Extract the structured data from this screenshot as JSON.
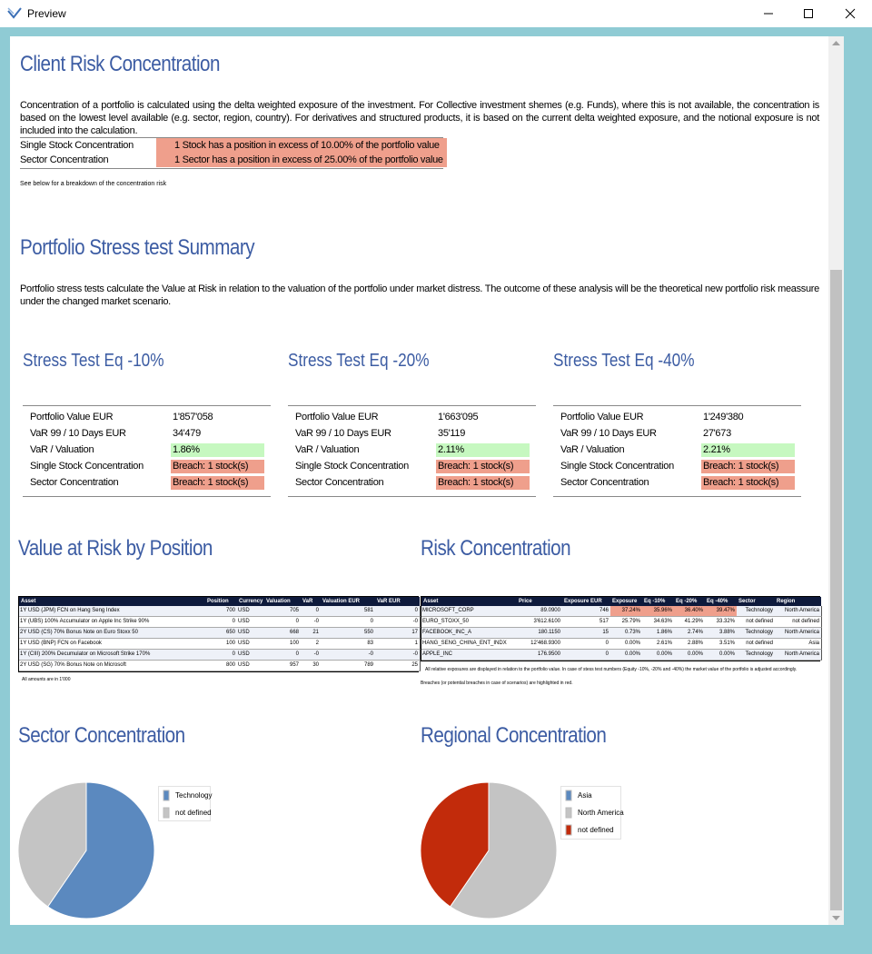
{
  "window": {
    "title": "Preview"
  },
  "client_risk": {
    "title": "Client Risk Concentration",
    "text": "Concentration of a portfolio is calculated using the delta weighted exposure of the investment. For Collective investment shemes (e.g. Funds), where this is not available, the concentration is based on the lowest level available (e.g. sector, region, country). For derivatives and structured products, it is based on the current delta weighted exposure, and the notional exposure is not included into the calculation.",
    "rows": [
      [
        "Single Stock Concentration",
        "1 Stock has a position in excess of 10.00% of the portfolio value"
      ],
      [
        "Sector Concentration",
        "1 Sector has a position in excess of 25.00% of the portfolio value"
      ]
    ],
    "note": "See below for a breakdown of the concentration risk"
  },
  "stress": {
    "title": "Portfolio Stress test Summary",
    "text": "Portfolio stress tests calculate the Value at Risk in relation to the valuation of the portfolio under market distress. The outcome of these analysis will be the theoretical new portfolio risk meassure under the changed market scenario.",
    "cards": [
      {
        "title": "Stress Test Eq -10%",
        "rows": [
          {
            "label": "Portfolio Value EUR",
            "value": "1'857'058"
          },
          {
            "label": "VaR 99 / 10 Days EUR",
            "value": "34'479"
          },
          {
            "label": "VaR / Valuation",
            "value": "1.86%",
            "color": "#c6f8c0"
          },
          {
            "label": "Single Stock Concentration",
            "value": "Breach: 1 stock(s)",
            "color": "#ef9f8c"
          },
          {
            "label": "Sector Concentration",
            "value": "Breach: 1 stock(s)",
            "color": "#ef9f8c"
          }
        ]
      },
      {
        "title": "Stress Test Eq -20%",
        "rows": [
          {
            "label": "Portfolio Value EUR",
            "value": "1'663'095"
          },
          {
            "label": "VaR 99 / 10 Days EUR",
            "value": "35'119"
          },
          {
            "label": "VaR / Valuation",
            "value": "2.11%",
            "color": "#c6f8c0"
          },
          {
            "label": "Single Stock Concentration",
            "value": "Breach: 1 stock(s)",
            "color": "#ef9f8c"
          },
          {
            "label": "Sector Concentration",
            "value": "Breach: 1 stock(s)",
            "color": "#ef9f8c"
          }
        ]
      },
      {
        "title": "Stress Test Eq -40%",
        "rows": [
          {
            "label": "Portfolio Value EUR",
            "value": "1'249'380"
          },
          {
            "label": "VaR 99 / 10 Days EUR",
            "value": "27'673"
          },
          {
            "label": "VaR / Valuation",
            "value": "2.21%",
            "color": "#c6f8c0"
          },
          {
            "label": "Single Stock Concentration",
            "value": "Breach: 1 stock(s)",
            "color": "#ef9f8c"
          },
          {
            "label": "Sector Concentration",
            "value": "Breach: 1 stock(s)",
            "color": "#ef9f8c"
          }
        ]
      }
    ]
  },
  "var_table": {
    "title": "Value at Risk by Position",
    "headers": [
      "Asset",
      "Position",
      "Currency",
      "Valuation",
      "VaR",
      "Valuation EUR",
      "VaR EUR"
    ],
    "rows": [
      [
        "1Y USD (JPM) FCN on Hang Seng Index",
        "700",
        "USD",
        "705",
        "0",
        "581",
        "0"
      ],
      [
        "1Y (UBS) 100% Accumulator on Apple Inc Strike 90%",
        "0",
        "USD",
        "0",
        "-0",
        "0",
        "-0"
      ],
      [
        "2Y USD (CS) 70% Bonus Note on Euro Stoxx 50",
        "650",
        "USD",
        "668",
        "21",
        "550",
        "17"
      ],
      [
        "1Y USD (BNP) FCN on Facebook",
        "100",
        "USD",
        "100",
        "2",
        "83",
        "1"
      ],
      [
        "1Y (CIII) 200% Decumulator on Microsoft Strike 170%",
        "0",
        "USD",
        "0",
        "-0",
        "-0",
        "-0"
      ],
      [
        "2Y USD (SG) 70% Bonus Note on Microsoft",
        "800",
        "USD",
        "957",
        "30",
        "789",
        "25"
      ]
    ],
    "note": "All amounts are in 1'000"
  },
  "risk_table": {
    "title": "Risk Concentration",
    "headers": [
      "Asset",
      "Price",
      "Exposure EUR",
      "Exposure",
      "Eq -10%",
      "Eq -20%",
      "Eq -40%",
      "Sector",
      "Region"
    ],
    "rows": [
      [
        "MICROSOFT_CORP",
        "89.0900",
        "746",
        "37.24%",
        "35.96%",
        "36.40%",
        "39.47%",
        "Technology",
        "North America"
      ],
      [
        "EURO_STOXX_50",
        "3'612.6100",
        "517",
        "25.79%",
        "34.63%",
        "41.29%",
        "33.32%",
        "not defined",
        "not defined"
      ],
      [
        "FACEBOOK_INC_A",
        "180.1150",
        "15",
        "0.73%",
        "1.86%",
        "2.74%",
        "3.88%",
        "Technology",
        "North America"
      ],
      [
        "HANG_SENG_CHINA_ENT_INDX",
        "12'468.9300",
        "0",
        "0.00%",
        "2.61%",
        "2.88%",
        "3.51%",
        "not defined",
        "Asia"
      ],
      [
        "APPLE_INC",
        "176.9500",
        "0",
        "0.00%",
        "0.00%",
        "0.00%",
        "0.00%",
        "Technology",
        "North America"
      ]
    ],
    "highlight": [
      [
        3,
        4,
        5,
        6
      ],
      [],
      [],
      [],
      []
    ],
    "notes": [
      "All relative exposures are displayed in relation to the portfolio value. In case of stess test numbers (Equity -10%, -20% and -40%) the market value of the portfolio is adjusted accordingly.",
      "Breaches (or potential breaches in case of scenarios) are highlighted in red."
    ]
  },
  "sector_chart": {
    "type": "pie",
    "title": "Sector Concentration",
    "categories": [
      "Technology",
      "not defined"
    ],
    "values": [
      37.97,
      25.79
    ],
    "colors": [
      "#5b89bf",
      "#c4c4c4"
    ]
  },
  "region_chart": {
    "type": "pie",
    "title": "Regional Concentration",
    "categories": [
      "Asia",
      "North America",
      "not defined"
    ],
    "values": [
      0,
      37.97,
      25.79
    ],
    "colors": [
      "#5b89bf",
      "#c4c4c4",
      "#c22b0b"
    ]
  }
}
